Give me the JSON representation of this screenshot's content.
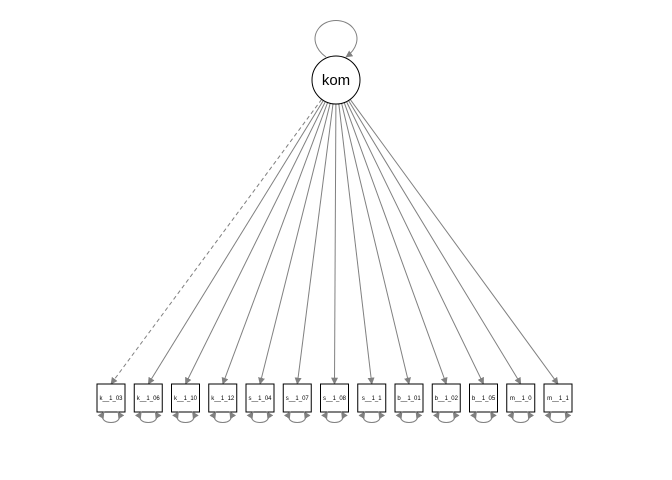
{
  "latent": {
    "label": "kom"
  },
  "indicators": [
    {
      "label": "k__1_03",
      "fixed": true
    },
    {
      "label": "k__1_06",
      "fixed": false
    },
    {
      "label": "k__1_10",
      "fixed": false
    },
    {
      "label": "k__1_12",
      "fixed": false
    },
    {
      "label": "s__1_04",
      "fixed": false
    },
    {
      "label": "s__1_07",
      "fixed": false
    },
    {
      "label": "s__1_08",
      "fixed": false
    },
    {
      "label": "s__1_1",
      "fixed": false
    },
    {
      "label": "b__1_01",
      "fixed": false
    },
    {
      "label": "b__1_02",
      "fixed": false
    },
    {
      "label": "b__1_05",
      "fixed": false
    },
    {
      "label": "m__1_0",
      "fixed": false
    },
    {
      "label": "m__1_1",
      "fixed": false
    }
  ],
  "colors": {
    "edge": "#808080",
    "node_stroke": "#000000",
    "node_fill": "#ffffff"
  }
}
